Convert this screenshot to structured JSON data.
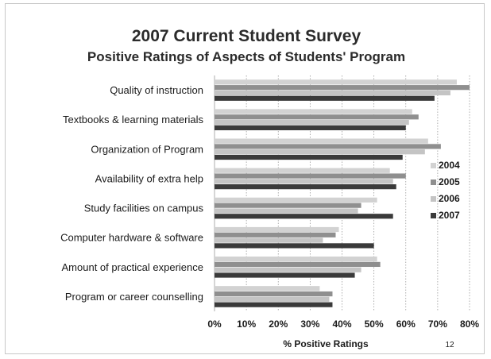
{
  "colors": {
    "2004": "#d2d2d2",
    "2005": "#8f8f8f",
    "2006": "#c4c4c4",
    "2007": "#3a3a3a",
    "gridline": "#9a9a9a"
  },
  "page_number": "12",
  "chart_data": {
    "type": "bar",
    "orientation": "horizontal",
    "title": "2007 Current Student Survey",
    "subtitle": "Positive Ratings of Aspects of Students' Program",
    "xlabel": "% Positive Ratings",
    "ylabel": "",
    "xlim": [
      0,
      80
    ],
    "x_ticks": [
      "0%",
      "10%",
      "20%",
      "30%",
      "40%",
      "50%",
      "60%",
      "70%",
      "80%"
    ],
    "grid": "vertical dashed",
    "legend_position": "right",
    "categories": [
      "Quality of instruction",
      "Textbooks & learning materials",
      "Organization of Program",
      "Availability of extra help",
      "Study facilities on campus",
      "Computer hardware & software",
      "Amount of practical experience",
      "Program or career counselling"
    ],
    "series": [
      {
        "name": "2004",
        "values": [
          76,
          62,
          67,
          55,
          51,
          39,
          51,
          33
        ]
      },
      {
        "name": "2005",
        "values": [
          80,
          64,
          71,
          60,
          46,
          38,
          52,
          37
        ]
      },
      {
        "name": "2006",
        "values": [
          74,
          61,
          66,
          56,
          45,
          34,
          46,
          36
        ]
      },
      {
        "name": "2007",
        "values": [
          69,
          60,
          59,
          57,
          56,
          50,
          44,
          37
        ]
      }
    ]
  }
}
